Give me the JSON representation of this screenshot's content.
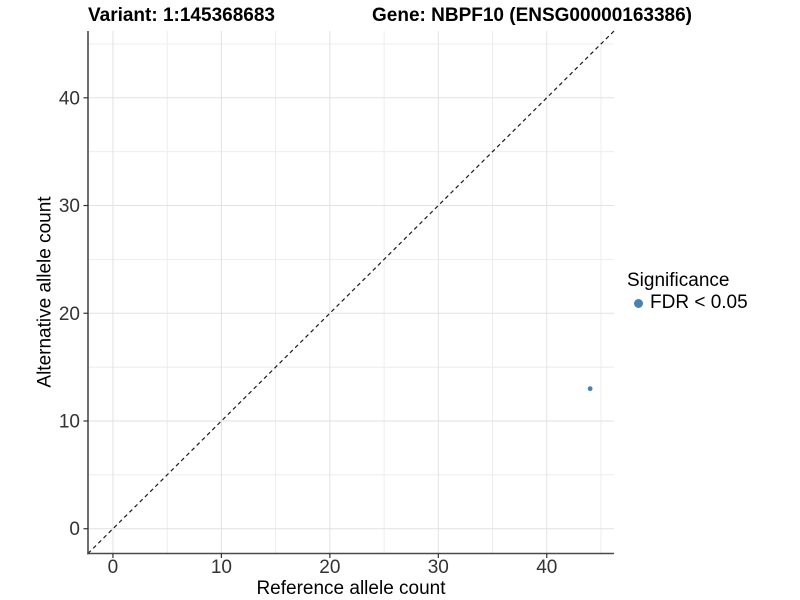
{
  "titles": {
    "left": "Variant: 1:145368683",
    "right": "Gene: NBPF10 (ENSG00000163386)"
  },
  "axes": {
    "x": {
      "label": "Reference allele count"
    },
    "y": {
      "label": "Alternative allele count"
    }
  },
  "legend": {
    "title": "Significance",
    "items": [
      {
        "label": "FDR < 0.05",
        "color": "#4682b4"
      }
    ]
  },
  "chart_data": {
    "type": "scatter",
    "title": "Variant: 1:145368683   |   Gene: NBPF10 (ENSG00000163386)",
    "xlabel": "Reference allele count",
    "ylabel": "Alternative allele count",
    "xlim": [
      -2.3,
      46.2
    ],
    "ylim": [
      -2.3,
      46.2
    ],
    "x_ticks": [
      0,
      10,
      20,
      30,
      40
    ],
    "y_ticks": [
      0,
      10,
      20,
      30,
      40
    ],
    "x_minor_ticks": [
      5,
      15,
      25,
      35,
      45
    ],
    "y_minor_ticks": [
      5,
      15,
      25,
      35,
      45
    ],
    "grid": "major and minor, light gray",
    "legend_position": "right-middle",
    "series": [
      {
        "name": "FDR < 0.05",
        "color": "#4682b4",
        "points": [
          [
            44,
            13
          ]
        ]
      }
    ],
    "reference_line": {
      "type": "identity y=x",
      "style": "dashed",
      "color": "#1a1a1a"
    }
  },
  "style": {
    "background": "#ffffff",
    "grid_major": "#e2e2e2",
    "grid_minor": "#ebebeb",
    "axis_line": "#4a4a4a",
    "tick_mark": "#333333",
    "tick_label_color": "#333333",
    "point_color": "#4682b4"
  }
}
